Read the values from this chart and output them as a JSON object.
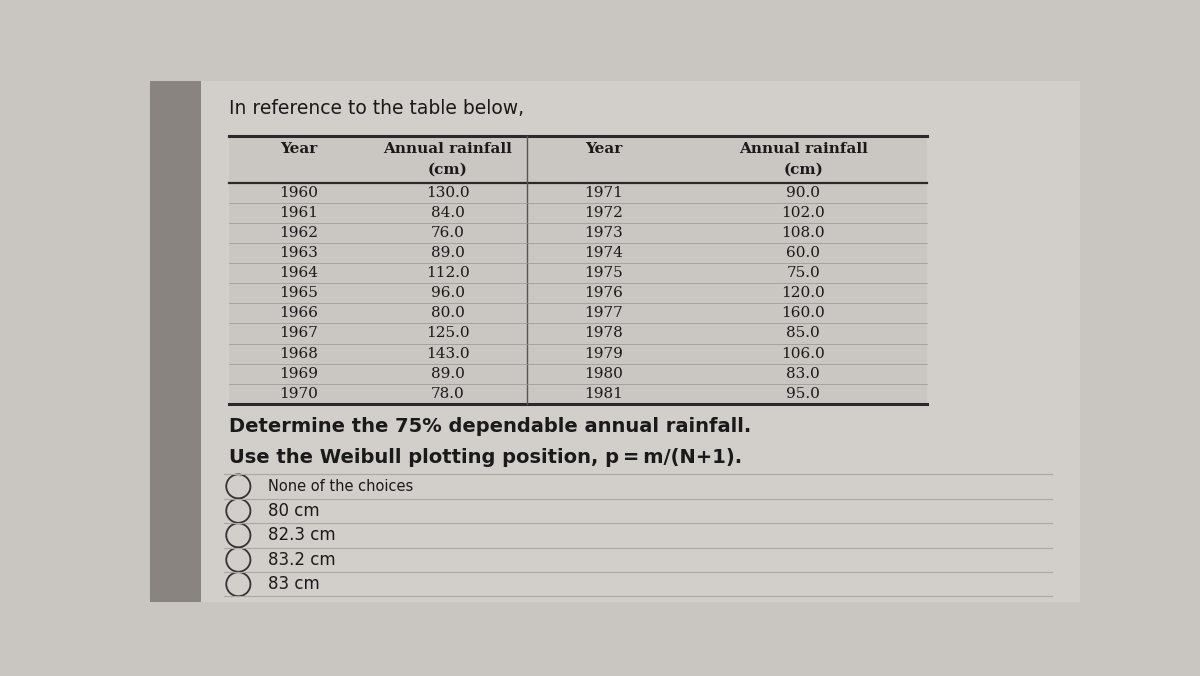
{
  "title": "In reference to the table below,",
  "col_headers_row1": [
    "Year",
    "Annual rainfall",
    "Year",
    "Annual rainfall"
  ],
  "col_headers_row2": [
    "",
    "(cm)",
    "",
    "(cm)"
  ],
  "left_years": [
    1960,
    1961,
    1962,
    1963,
    1964,
    1965,
    1966,
    1967,
    1968,
    1969,
    1970
  ],
  "left_rain": [
    130.0,
    84.0,
    76.0,
    89.0,
    112.0,
    96.0,
    80.0,
    125.0,
    143.0,
    89.0,
    78.0
  ],
  "right_years": [
    1971,
    1972,
    1973,
    1974,
    1975,
    1976,
    1977,
    1978,
    1979,
    1980,
    1981
  ],
  "right_rain": [
    90.0,
    102.0,
    108.0,
    60.0,
    75.0,
    120.0,
    160.0,
    85.0,
    106.0,
    83.0,
    95.0
  ],
  "question_line1": "Determine the 75% dependable annual rainfall.",
  "question_line2": "Use the Weibull plotting position, p = m/(N+1).",
  "choices": [
    "None of the choices",
    "80 cm",
    "82.3 cm",
    "83.2 cm",
    "83 cm"
  ],
  "bg_color": "#c9c5c1",
  "sidebar_color": "#8a8480",
  "content_bg": "#d2ceca",
  "table_bg": "#cac6c2",
  "text_color": "#1a1a1a",
  "line_color": "#888480",
  "title_fontsize": 13.5,
  "table_fontsize": 11,
  "question_fontsize": 14,
  "choice_fontsize": 12,
  "small_choice_fontsize": 10.5
}
